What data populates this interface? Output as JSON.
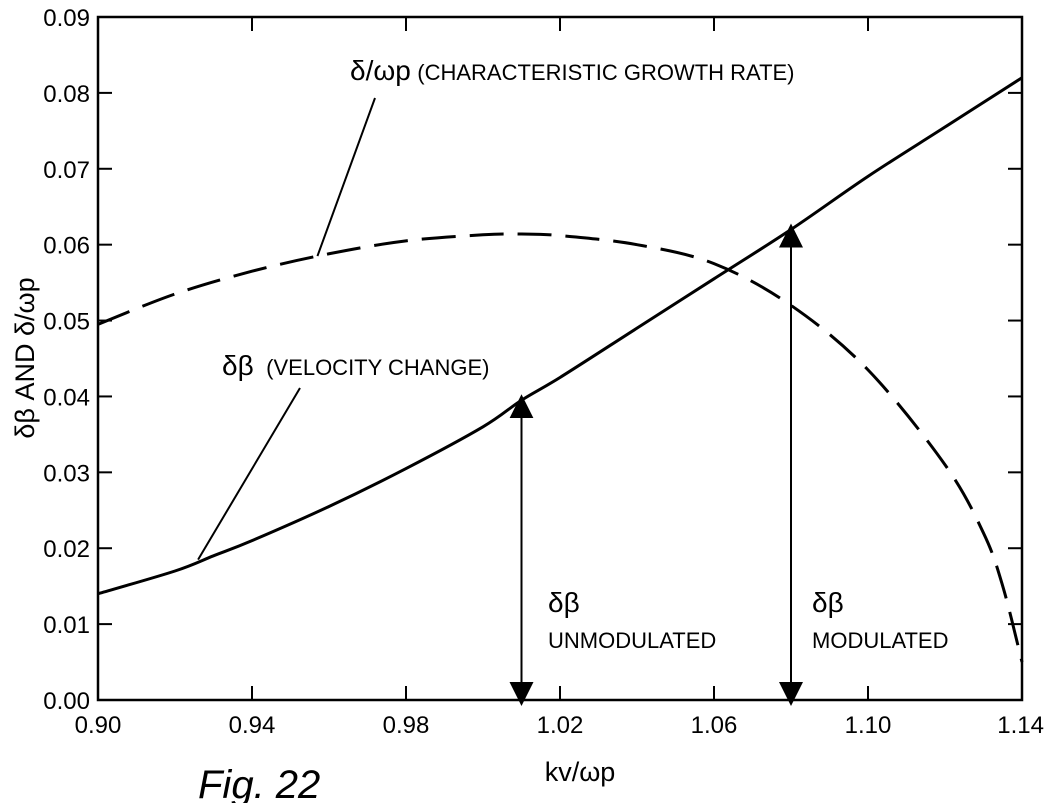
{
  "figure": {
    "caption": "Fig. 22"
  },
  "chart_data": {
    "type": "line",
    "xlabel": "kv/ωp",
    "ylabel": "δβ AND δ/ωp",
    "xlim": [
      0.9,
      1.14
    ],
    "ylim": [
      0.0,
      0.09
    ],
    "xticks": [
      "0.90",
      "0.94",
      "0.98",
      "1.02",
      "1.06",
      "1.10",
      "1.14"
    ],
    "yticks": [
      "0.00",
      "0.01",
      "0.02",
      "0.03",
      "0.04",
      "0.05",
      "0.06",
      "0.07",
      "0.08",
      "0.09"
    ],
    "grid": false,
    "series": [
      {
        "name": "δβ (VELOCITY CHANGE)",
        "style": "solid",
        "x": [
          0.9,
          0.92,
          0.93,
          0.94,
          0.96,
          0.98,
          1.0,
          1.01,
          1.02,
          1.04,
          1.06,
          1.08,
          1.1,
          1.12,
          1.14
        ],
        "y": [
          0.014,
          0.017,
          0.019,
          0.021,
          0.0255,
          0.0305,
          0.036,
          0.0395,
          0.0425,
          0.049,
          0.0555,
          0.062,
          0.069,
          0.0755,
          0.082
        ]
      },
      {
        "name": "δ/ωp (CHARACTERISTIC GROWTH RATE)",
        "style": "dashed",
        "x": [
          0.9,
          0.92,
          0.94,
          0.96,
          0.98,
          1.0,
          1.01,
          1.02,
          1.04,
          1.06,
          1.08,
          1.1,
          1.12,
          1.13,
          1.135,
          1.14
        ],
        "y": [
          0.0495,
          0.0535,
          0.0565,
          0.0588,
          0.0605,
          0.0613,
          0.0614,
          0.0612,
          0.06,
          0.0575,
          0.052,
          0.0435,
          0.031,
          0.022,
          0.015,
          0.005
        ]
      }
    ],
    "annotations": [
      {
        "text": "δβ",
        "subtext": "UNMODULATED",
        "x": 1.01,
        "y_from": 0.0,
        "y_to": 0.0395
      },
      {
        "text": "δβ",
        "subtext": "MODULATED",
        "x": 1.08,
        "y_from": 0.0,
        "y_to": 0.062
      }
    ],
    "labels": {
      "growth_prefix": "δ/ωp",
      "growth_text": "(CHARACTERISTIC GROWTH RATE)",
      "velocity_prefix": "δβ",
      "velocity_text": "(VELOCITY CHANGE)"
    }
  }
}
